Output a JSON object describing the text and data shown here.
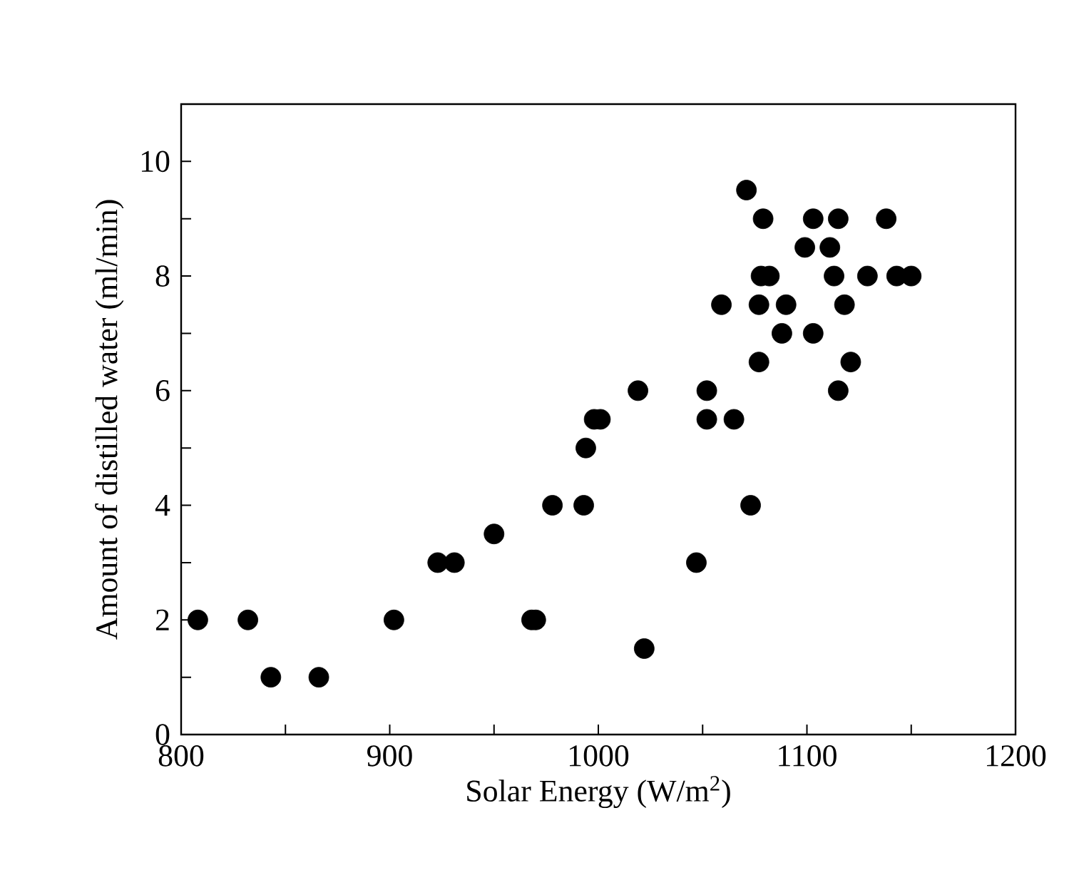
{
  "chart_data": {
    "type": "scatter",
    "xlabel": "Solar Energy (W/m$^{2}$)",
    "ylabel": "Amount of distilled water (ml/min)",
    "x": [
      808,
      832,
      843,
      866,
      902,
      923,
      931,
      950,
      968,
      970,
      978,
      993,
      994,
      998,
      1001,
      1019,
      1022,
      1047,
      1052,
      1052,
      1065,
      1073,
      1077,
      1071,
      1079,
      1103,
      1115,
      1138,
      1099,
      1111,
      1078,
      1082,
      1113,
      1129,
      1143,
      1150,
      1059,
      1077,
      1090,
      1118,
      1088,
      1103,
      1121,
      1115
    ],
    "values": [
      2,
      2,
      1,
      1,
      2,
      3,
      3,
      3.5,
      2,
      2,
      4,
      4,
      5,
      5.5,
      5.5,
      6,
      1.5,
      3,
      6,
      5.5,
      5.5,
      4,
      6.5,
      9.5,
      9,
      9,
      9,
      9,
      8.5,
      8.5,
      8,
      8,
      8,
      8,
      8,
      8,
      7.5,
      7.5,
      7.5,
      7.5,
      7,
      7,
      6.5,
      6
    ],
    "color": "#000000",
    "marker": "circle",
    "xlim": [
      800,
      1200
    ],
    "ylim": [
      0,
      11
    ],
    "xticks": [
      800,
      900,
      1000,
      1100,
      1200
    ],
    "yticks": [
      0,
      2,
      4,
      6,
      8,
      10
    ]
  }
}
